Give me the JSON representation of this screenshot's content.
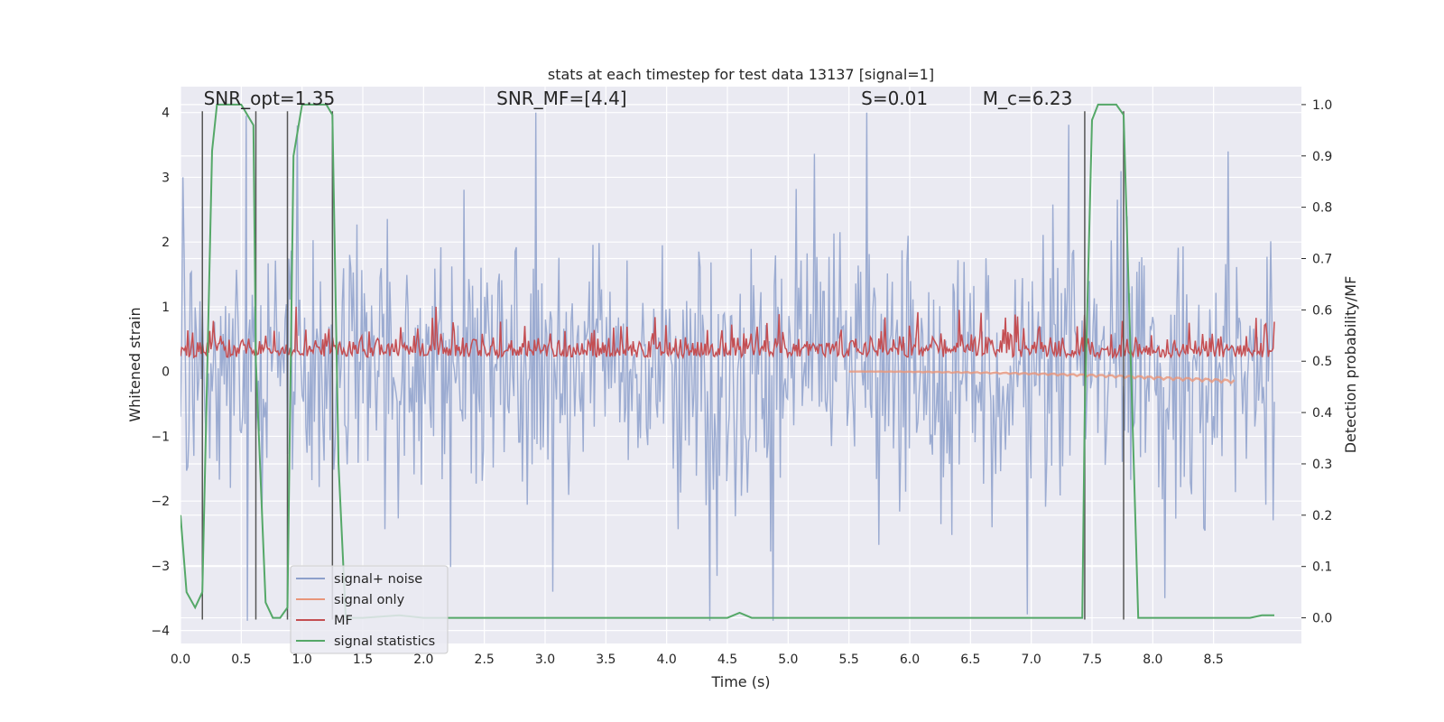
{
  "chart_data": {
    "type": "line",
    "title": "stats at each timestep for test data 13137 [signal=1]",
    "xlabel": "Time (s)",
    "ylabel": "Whitened strain",
    "ylabel_right": "Detection probability/MF",
    "xlim": [
      0.0,
      9.0
    ],
    "ylim": [
      -4.2,
      4.4
    ],
    "ylim_right": [
      -0.05,
      1.035
    ],
    "x_ticks": [
      0.0,
      0.5,
      1.0,
      1.5,
      2.0,
      2.5,
      3.0,
      3.5,
      4.0,
      4.5,
      5.0,
      5.5,
      6.0,
      6.5,
      7.0,
      7.5,
      8.0,
      8.5
    ],
    "x_tick_labels": [
      "0.0",
      "0.5",
      "1.0",
      "1.5",
      "2.0",
      "2.5",
      "3.0",
      "3.5",
      "4.0",
      "4.5",
      "5.0",
      "5.5",
      "6.0",
      "6.5",
      "7.0",
      "7.5",
      "8.0",
      "8.5"
    ],
    "y_ticks": [
      -4,
      -3,
      -2,
      -1,
      0,
      1,
      2,
      3,
      4
    ],
    "y_tick_labels": [
      "−4",
      "−3",
      "−2",
      "−1",
      "0",
      "1",
      "2",
      "3",
      "4"
    ],
    "y_right_ticks": [
      0.0,
      0.1,
      0.2,
      0.3,
      0.4,
      0.5,
      0.6,
      0.7,
      0.8,
      0.9,
      1.0
    ],
    "y_right_tick_labels": [
      "0.0",
      "0.1",
      "0.2",
      "0.3",
      "0.4",
      "0.5",
      "0.6",
      "0.7",
      "0.8",
      "0.9",
      "1.0"
    ],
    "grid": true,
    "legend_position": "lower-left",
    "annotations": [
      {
        "id": "snr-opt",
        "text": "SNR_opt=1.35",
        "x": 0.19,
        "y": 4.12
      },
      {
        "id": "snr-mf",
        "text": "SNR_MF=[4.4]",
        "x": 2.6,
        "y": 4.12
      },
      {
        "id": "s",
        "text": "S=0.01",
        "x": 5.6,
        "y": 4.12
      },
      {
        "id": "mc",
        "text": "M_c=6.23",
        "x": 6.6,
        "y": 4.12
      }
    ],
    "vertical_markers_x": [
      0.18,
      0.62,
      0.88,
      1.25,
      7.44,
      7.76
    ],
    "vertical_markers_range": [
      -3.83,
      4.02
    ],
    "series": [
      {
        "name": "signal+ noise",
        "color": "#8da0cb",
        "axis": "left",
        "kind": "noise",
        "n_points": 900,
        "y_min": -3.85,
        "y_max": 3.95,
        "std": 0.95,
        "spikes": [
          {
            "x": 0.02,
            "y": 3.0
          },
          {
            "x": 0.96,
            "y": 3.8
          },
          {
            "x": 2.92,
            "y": 4.0
          },
          {
            "x": 5.65,
            "y": 4.0
          },
          {
            "x": 4.88,
            "y": -3.85
          },
          {
            "x": 6.97,
            "y": -3.75
          },
          {
            "x": 3.06,
            "y": -3.4
          },
          {
            "x": 8.1,
            "y": -3.5
          }
        ]
      },
      {
        "name": "signal only",
        "color": "#e8967a",
        "axis": "left",
        "x_range": [
          5.5,
          8.67
        ],
        "y_start": 0.0,
        "y_end": -0.15
      },
      {
        "name": "MF",
        "color": "#c44e52",
        "axis": "left",
        "kind": "noise",
        "n_points": 900,
        "y_min": 0.0,
        "y_max": 1.0,
        "center": 0.3
      },
      {
        "name": "signal statistics",
        "color": "#55a868",
        "axis": "right",
        "x": [
          0.0,
          0.05,
          0.12,
          0.18,
          0.26,
          0.3,
          0.5,
          0.6,
          0.62,
          0.7,
          0.76,
          0.82,
          0.88,
          0.93,
          1.0,
          1.2,
          1.25,
          1.3,
          1.36,
          1.5,
          1.8,
          2.0,
          4.5,
          4.6,
          4.7,
          7.42,
          7.44,
          7.5,
          7.55,
          7.7,
          7.76,
          7.88,
          8.0,
          8.8,
          8.9,
          9.0
        ],
        "y": [
          0.2,
          0.05,
          0.02,
          0.05,
          0.91,
          1.0,
          1.0,
          0.96,
          0.5,
          0.03,
          0.0,
          0.0,
          0.02,
          0.9,
          1.0,
          1.0,
          0.98,
          0.3,
          0.0,
          0.0,
          0.005,
          0.0,
          0.0,
          0.01,
          0.0,
          0.0,
          0.4,
          0.97,
          1.0,
          1.0,
          0.98,
          0.0,
          0.0,
          0.0,
          0.005,
          0.005
        ]
      }
    ]
  }
}
